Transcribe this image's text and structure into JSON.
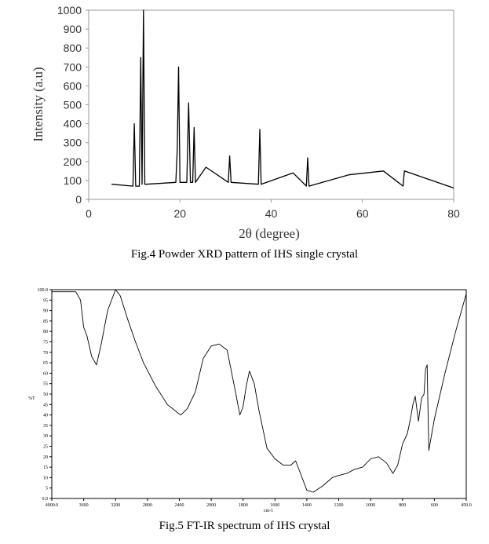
{
  "chart_data": [
    {
      "type": "line",
      "caption": "Fig.4 Powder XRD pattern of IHS single crystal",
      "xlabel": "2θ (degree)",
      "ylabel": "Intensity (a.u)",
      "xlim": [
        0,
        80
      ],
      "ylim": [
        0,
        1000
      ],
      "xticks": [
        0,
        20,
        40,
        60,
        80
      ],
      "yticks": [
        0,
        100,
        200,
        300,
        400,
        500,
        600,
        700,
        800,
        900,
        1000
      ],
      "grid": false,
      "series": [
        {
          "x": [
            5.0,
            9.7,
            10.0,
            10.3,
            11.1,
            11.4,
            11.7,
            12.0,
            12.3,
            12.6,
            19.1,
            19.4,
            19.7,
            20.0,
            21.5,
            21.9,
            22.3,
            22.8,
            23.1,
            23.4,
            25.7,
            30.6,
            30.9,
            31.2,
            37.2,
            37.5,
            37.8,
            44.8,
            47.7,
            48.0,
            48.3,
            57.0,
            64.6,
            68.9,
            69.2,
            80.0
          ],
          "y": [
            80,
            70,
            400,
            70,
            70,
            750,
            80,
            1000,
            80,
            80,
            90,
            260,
            700,
            90,
            90,
            510,
            90,
            90,
            380,
            90,
            170,
            90,
            230,
            90,
            80,
            370,
            80,
            140,
            70,
            220,
            70,
            130,
            150,
            70,
            150,
            60
          ]
        }
      ]
    },
    {
      "type": "line",
      "caption": "Fig.5 FT-IR spectrum of IHS crystal",
      "xlabel": "cm-1",
      "ylabel": "%T",
      "xlim": [
        4000.0,
        450.0
      ],
      "ylim": [
        0.0,
        100.0
      ],
      "xticks": [
        "4000.0",
        "3600",
        "3200",
        "2800",
        "2400",
        "2000",
        "1800",
        "1600",
        "1400",
        "1200",
        "1000",
        "800",
        "600",
        "450.0"
      ],
      "yticks": [
        "0.0",
        "5",
        "10",
        "15",
        "20",
        "25",
        "30",
        "35",
        "40",
        "45",
        "50",
        "55",
        "60",
        "65",
        "70",
        "75",
        "80",
        "85",
        "90",
        "95",
        "100.0"
      ],
      "grid": false,
      "series": [
        {
          "x": [
            4000,
            3800,
            3700,
            3640,
            3600,
            3560,
            3500,
            3440,
            3380,
            3300,
            3200,
            3140,
            3050,
            2950,
            2850,
            2700,
            2550,
            2420,
            2380,
            2300,
            2200,
            2100,
            2000,
            1950,
            1900,
            1850,
            1820,
            1800,
            1780,
            1760,
            1730,
            1700,
            1650,
            1600,
            1550,
            1500,
            1470,
            1440,
            1400,
            1360,
            1300,
            1240,
            1200,
            1150,
            1100,
            1050,
            1000,
            950,
            900,
            860,
            830,
            800,
            770,
            750,
            735,
            720,
            700,
            680,
            665,
            655,
            645,
            635,
            600,
            550,
            500,
            450
          ],
          "y": [
            99,
            99,
            99,
            95,
            82,
            78,
            68,
            64,
            74,
            90,
            100,
            97,
            86,
            75,
            65,
            54,
            45,
            41,
            40,
            43,
            51,
            67,
            73,
            74,
            71,
            52,
            40,
            44,
            54,
            61,
            55,
            42,
            24,
            19,
            16,
            16,
            18,
            12,
            4,
            3,
            6,
            10,
            11,
            12,
            14,
            15,
            19,
            20,
            17,
            12,
            16,
            26,
            31,
            38,
            45,
            49,
            37,
            48,
            50,
            62,
            64,
            23,
            38,
            60,
            80,
            98
          ]
        }
      ]
    }
  ]
}
